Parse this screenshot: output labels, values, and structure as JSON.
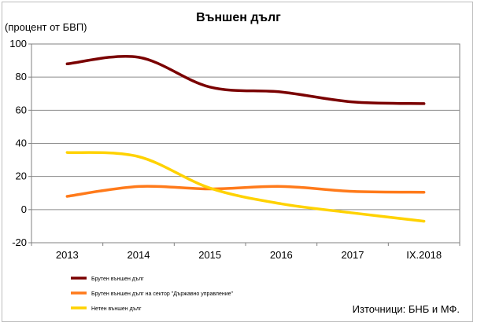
{
  "chart_data": {
    "type": "line",
    "title": "Външен дълг",
    "ylabel": "(процент от БВП)",
    "source": "Източници: БНБ и МФ.",
    "categories": [
      "2013",
      "2014",
      "2015",
      "2016",
      "2017",
      "IX.2018"
    ],
    "ylim": [
      -20,
      100
    ],
    "yticks": [
      -20,
      0,
      20,
      40,
      60,
      80,
      100
    ],
    "grid": true,
    "legend_position": "bottom-left",
    "series": [
      {
        "name": "Брутен външен дълг",
        "color": "#7a0000",
        "values": [
          88.0,
          92.0,
          74.0,
          71.0,
          65.0,
          64.0
        ]
      },
      {
        "name": "Брутен външен дълг на сектор \"Държавно управление\"",
        "color": "#ff7a1a",
        "values": [
          8.0,
          14.0,
          12.5,
          14.0,
          11.0,
          10.5
        ]
      },
      {
        "name": "Нетен външен дълг",
        "color": "#ffd200",
        "values": [
          34.5,
          32.0,
          13.0,
          3.5,
          -2.0,
          -7.0
        ]
      }
    ]
  }
}
